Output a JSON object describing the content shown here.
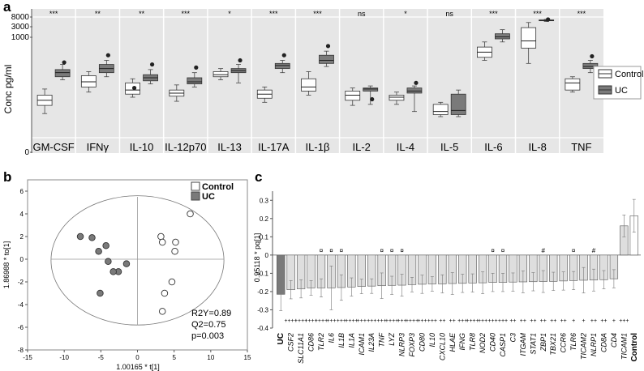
{
  "panels": {
    "a": "a",
    "b": "b",
    "c": "c"
  },
  "chart_data": [
    {
      "panel": "a",
      "type": "box",
      "ylabel": "Conc pg/ml",
      "yscale": "log-like",
      "y_tick_labels": [
        "8000",
        "3000",
        "1000",
        "0"
      ],
      "legend": [
        "Control",
        "UC"
      ],
      "colors": {
        "Control": "#ffffff",
        "UC": "#7a7a7a",
        "panel_bg": "#e6e6e6"
      },
      "categories": [
        "GM-CSF",
        "IFNγ",
        "IL-10",
        "IL-12p70",
        "IL-13",
        "IL-17A",
        "IL-1β",
        "IL-2",
        "IL-4",
        "IL-5",
        "IL-6",
        "IL-8",
        "TNF"
      ],
      "significance": [
        "***",
        "**",
        "**",
        "***",
        "*",
        "***",
        "***",
        "ns",
        "*",
        "ns",
        "***",
        "***",
        "***"
      ],
      "note": "box positions estimated on relative display scale 0-1 (axis not linear)",
      "boxes": [
        {
          "control": {
            "wlo": 0.22,
            "q1": 0.3,
            "med": 0.35,
            "q3": 0.4,
            "whi": 0.46,
            "out": null
          },
          "uc": {
            "wlo": 0.55,
            "q1": 0.58,
            "med": 0.62,
            "q3": 0.65,
            "whi": 0.7,
            "out": 0.72
          }
        },
        {
          "control": {
            "wlo": 0.43,
            "q1": 0.48,
            "med": 0.53,
            "q3": 0.59,
            "whi": 0.63,
            "out": null
          },
          "uc": {
            "wlo": 0.58,
            "q1": 0.62,
            "med": 0.66,
            "q3": 0.7,
            "whi": 0.74,
            "out": 0.79
          }
        },
        {
          "control": {
            "wlo": 0.38,
            "q1": 0.41,
            "med": 0.45,
            "q3": 0.52,
            "whi": 0.56,
            "out": 0.47
          },
          "uc": {
            "wlo": 0.51,
            "q1": 0.54,
            "med": 0.57,
            "q3": 0.6,
            "whi": 0.65,
            "out": 0.7
          }
        },
        {
          "control": {
            "wlo": 0.34,
            "q1": 0.39,
            "med": 0.42,
            "q3": 0.45,
            "whi": 0.5,
            "out": null
          },
          "uc": {
            "wlo": 0.48,
            "q1": 0.51,
            "med": 0.53,
            "q3": 0.57,
            "whi": 0.62,
            "out": 0.67
          }
        },
        {
          "control": {
            "wlo": 0.55,
            "q1": 0.58,
            "med": 0.6,
            "q3": 0.63,
            "whi": 0.66,
            "out": null
          },
          "uc": {
            "wlo": 0.52,
            "q1": 0.62,
            "med": 0.64,
            "q3": 0.66,
            "whi": 0.7,
            "out": 0.74
          }
        },
        {
          "control": {
            "wlo": 0.33,
            "q1": 0.37,
            "med": 0.41,
            "q3": 0.45,
            "whi": 0.48,
            "out": null
          },
          "uc": {
            "wlo": 0.62,
            "q1": 0.66,
            "med": 0.69,
            "q3": 0.71,
            "whi": 0.74,
            "out": 0.79
          }
        },
        {
          "control": {
            "wlo": 0.4,
            "q1": 0.44,
            "med": 0.48,
            "q3": 0.56,
            "whi": 0.63,
            "out": null
          },
          "uc": {
            "wlo": 0.68,
            "q1": 0.71,
            "med": 0.74,
            "q3": 0.79,
            "whi": 0.83,
            "out": 0.88
          }
        },
        {
          "control": {
            "wlo": 0.3,
            "q1": 0.35,
            "med": 0.4,
            "q3": 0.44,
            "whi": 0.47,
            "out": null
          },
          "uc": {
            "wlo": 0.31,
            "q1": 0.44,
            "med": 0.46,
            "q3": 0.47,
            "whi": 0.49,
            "out": 0.36
          }
        },
        {
          "control": {
            "wlo": 0.31,
            "q1": 0.35,
            "med": 0.38,
            "q3": 0.4,
            "whi": 0.43,
            "out": null
          },
          "uc": {
            "wlo": 0.24,
            "q1": 0.42,
            "med": 0.44,
            "q3": 0.47,
            "whi": 0.49,
            "out": 0.52
          }
        },
        {
          "control": {
            "wlo": 0.19,
            "q1": 0.21,
            "med": 0.24,
            "q3": 0.31,
            "whi": 0.33,
            "out": null
          },
          "uc": {
            "wlo": 0.19,
            "q1": 0.21,
            "med": 0.25,
            "q3": 0.41,
            "whi": 0.45,
            "out": null
          }
        },
        {
          "control": {
            "wlo": 0.74,
            "q1": 0.77,
            "med": 0.82,
            "q3": 0.87,
            "whi": 0.92,
            "out": null
          },
          "uc": {
            "wlo": 0.92,
            "q1": 0.95,
            "med": 0.97,
            "q3": 1.0,
            "whi": 1.04,
            "out": null
          }
        },
        {
          "control": {
            "wlo": 0.71,
            "q1": 0.86,
            "med": 0.93,
            "q3": 1.06,
            "whi": 1.11,
            "out": null
          },
          "uc": {
            "wlo": 1.12,
            "q1": 1.13,
            "med": 1.13,
            "q3": 1.135,
            "whi": 1.14,
            "out": 1.14
          }
        },
        {
          "control": {
            "wlo": 0.43,
            "q1": 0.45,
            "med": 0.52,
            "q3": 0.56,
            "whi": 0.58,
            "out": null
          },
          "uc": {
            "wlo": 0.62,
            "q1": 0.66,
            "med": 0.68,
            "q3": 0.71,
            "whi": 0.74,
            "out": 0.78
          }
        }
      ]
    },
    {
      "panel": "b",
      "type": "scatter",
      "title": "",
      "xlabel": "1.00165 * t[1]",
      "ylabel": "1.86988 * to[1]",
      "xlim": [
        -15,
        15
      ],
      "ylim": [
        -8,
        7
      ],
      "x_ticks": [
        "-15",
        "-10",
        "-5",
        "0",
        "5",
        "10",
        "15"
      ],
      "y_ticks": [
        "-8",
        "-6",
        "-4",
        "-2",
        "0",
        "2",
        "4",
        "6"
      ],
      "legend": [
        "Control",
        "UC"
      ],
      "stats": [
        "R2Y=0.89",
        "Q2=0.75",
        "p=0.003"
      ],
      "series": [
        {
          "name": "Control",
          "x": [
            3.2,
            3.4,
            5.2,
            5.1,
            7.2,
            4.7,
            3.7,
            3.4
          ],
          "y": [
            2.0,
            1.5,
            1.5,
            0.7,
            4.0,
            -2.0,
            -3.0,
            -4.6
          ]
        },
        {
          "name": "UC",
          "x": [
            -7.8,
            -6.2,
            -4.3,
            -5.3,
            -4.0,
            -1.5,
            -2.6,
            -3.3,
            -5.1
          ],
          "y": [
            2.0,
            1.9,
            1.2,
            0.7,
            -0.2,
            -0.4,
            -1.1,
            -1.1,
            -3.0
          ]
        }
      ]
    },
    {
      "panel": "c",
      "type": "bar",
      "ylabel": "0.95118 * pq[1]",
      "ylim": [
        -0.4,
        0.35
      ],
      "y_ticks": [
        "0.3",
        "0.2",
        "0.1",
        "0",
        "-0.1",
        "-0.2",
        "-0.3",
        "-0.4"
      ],
      "categories": [
        "UC",
        "CSF2",
        "SLC11A1",
        "CD86",
        "TLR2",
        "IL6",
        "IL1B",
        "IL1A",
        "ICAM1",
        "IL23A",
        "TNF",
        "LYZ",
        "NLRP3",
        "FOXP3",
        "CD80",
        "IL10",
        "CXCL10",
        "HLAE",
        "IFNG",
        "TLR8",
        "NOD2",
        "CD40",
        "CASP1",
        "C3",
        "ITGAM",
        "STAT1",
        "ZBP1",
        "TBX21",
        "CCR6",
        "TLR6",
        "TICAM2",
        "NLRP1",
        "CD8A",
        "CD4",
        "TICAM1",
        "Control"
      ],
      "values": [
        -0.215,
        -0.19,
        -0.185,
        -0.18,
        -0.18,
        -0.18,
        -0.178,
        -0.175,
        -0.172,
        -0.17,
        -0.168,
        -0.166,
        -0.165,
        -0.162,
        -0.16,
        -0.158,
        -0.158,
        -0.156,
        -0.155,
        -0.153,
        -0.152,
        -0.15,
        -0.15,
        -0.148,
        -0.147,
        -0.146,
        -0.145,
        -0.144,
        -0.142,
        -0.14,
        -0.138,
        -0.137,
        -0.135,
        -0.13,
        0.16,
        0.215
      ],
      "errors": [
        0.09,
        0.05,
        0.05,
        0.04,
        0.05,
        0.12,
        0.07,
        0.05,
        0.04,
        0.04,
        0.07,
        0.05,
        0.06,
        0.04,
        0.05,
        0.04,
        0.05,
        0.06,
        0.05,
        0.05,
        0.06,
        0.05,
        0.05,
        0.05,
        0.06,
        0.05,
        0.06,
        0.05,
        0.05,
        0.05,
        0.07,
        0.06,
        0.05,
        0.05,
        0.06,
        0.09
      ],
      "markers_above": [
        "",
        "",
        "",
        "",
        "¤",
        "¤",
        "¤",
        "",
        "",
        "",
        "¤",
        "¤",
        "¤",
        "",
        "",
        "",
        "",
        "",
        "",
        "",
        "",
        "¤",
        "¤",
        "",
        "",
        "",
        "#",
        "",
        "",
        "¤",
        "",
        "#",
        "",
        "",
        "",
        ""
      ],
      "significance": [
        "",
        "****",
        "****",
        "****",
        "****",
        "***",
        "***",
        "****",
        "***",
        "***",
        "***",
        "****",
        "***",
        "****",
        "***",
        "***",
        "**",
        "**",
        "***",
        "****",
        "***",
        "***",
        "***",
        "**",
        "**",
        "**",
        "**",
        "**",
        "**",
        "*",
        "*",
        "**",
        "**",
        "*",
        "***",
        ""
      ],
      "colors": {
        "UC": "#7a7a7a",
        "Control": "#ffffff",
        "genes": "#dedede"
      }
    }
  ]
}
